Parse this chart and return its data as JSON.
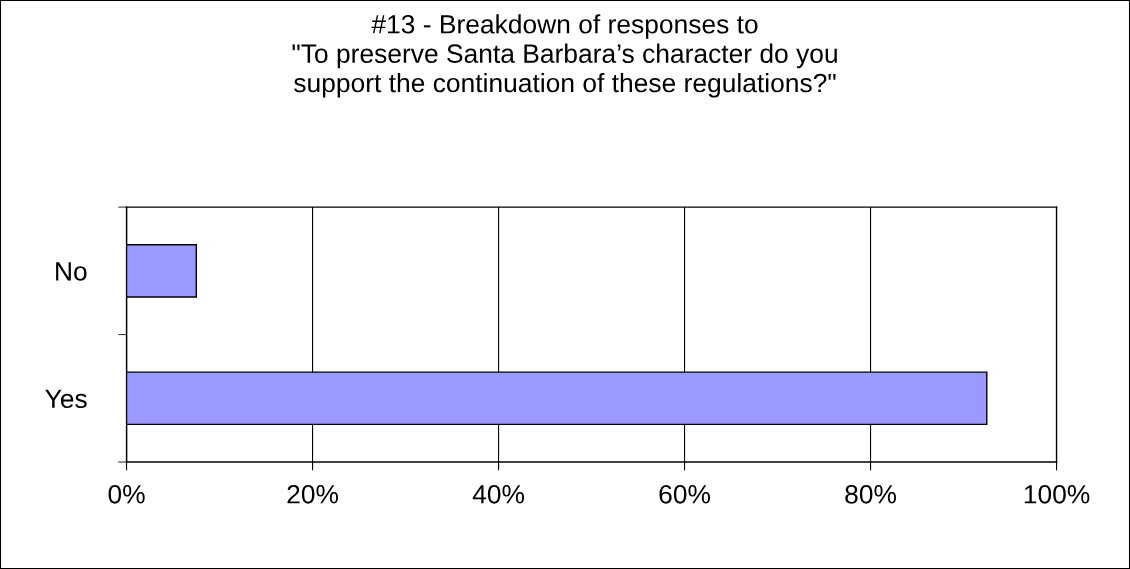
{
  "chart_data": {
    "type": "bar",
    "orientation": "horizontal",
    "title": "#13 - Breakdown of responses to\n\"To preserve Santa Barbara’s character do you\nsupport the continuation of these regulations?\"",
    "categories": [
      "No",
      "Yes"
    ],
    "values": [
      7.5,
      92.5
    ],
    "color": "#9999ff",
    "xlim": [
      0,
      100
    ],
    "xticks": [
      {
        "value": 0,
        "label": "0%"
      },
      {
        "value": 20,
        "label": "20%"
      },
      {
        "value": 40,
        "label": "40%"
      },
      {
        "value": 60,
        "label": "60%"
      },
      {
        "value": 80,
        "label": "80%"
      },
      {
        "value": 100,
        "label": "100%"
      }
    ],
    "grid": "x",
    "legend": false
  }
}
